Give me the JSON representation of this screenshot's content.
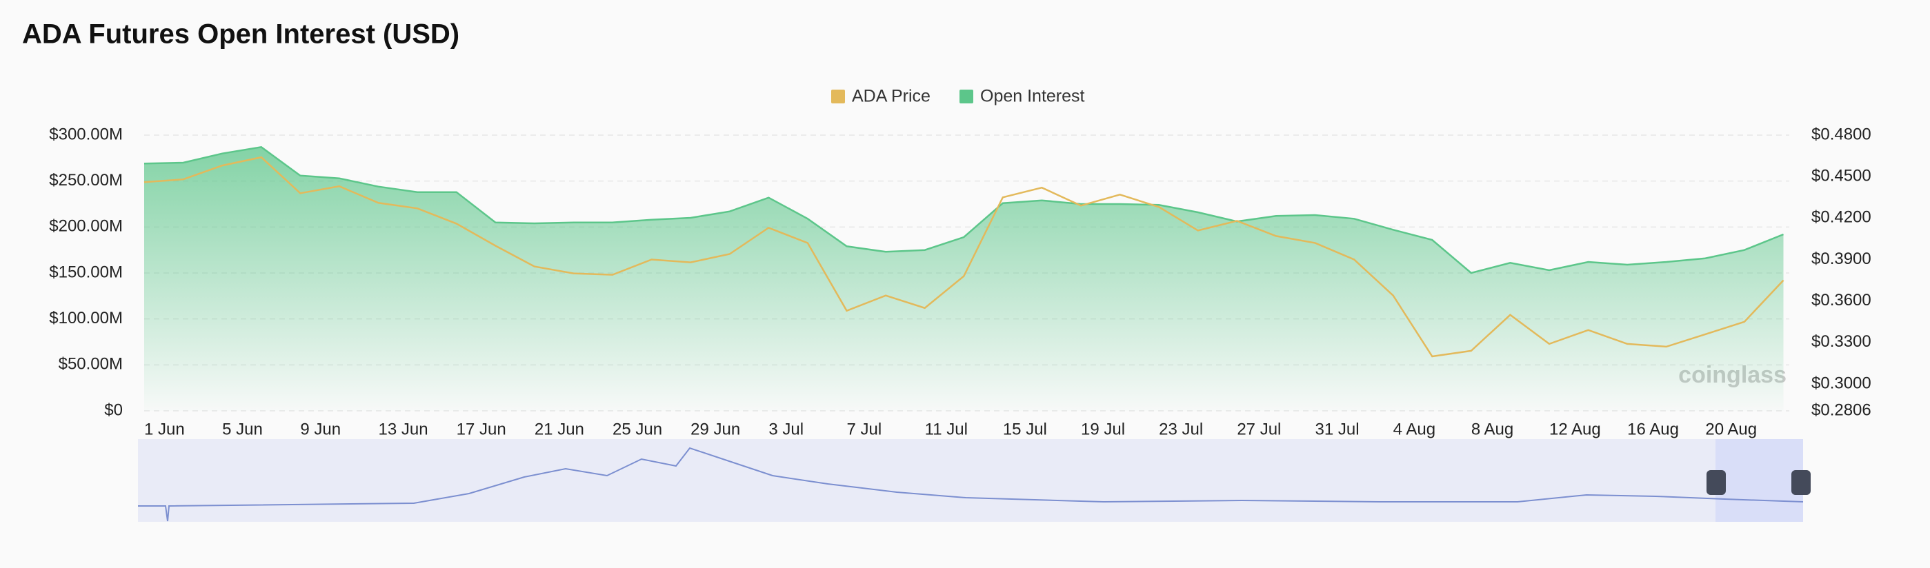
{
  "chart_data": {
    "type": "area-line",
    "title": "ADA Futures Open Interest (USD)",
    "watermark": "coinglass",
    "categories": [
      "1 Jun",
      null,
      "5 Jun",
      null,
      "9 Jun",
      null,
      "13 Jun",
      null,
      "17 Jun",
      null,
      "21 Jun",
      null,
      "25 Jun",
      null,
      "29 Jun",
      null,
      "3 Jul",
      null,
      "7 Jul",
      null,
      "11 Jul",
      null,
      "15 Jul",
      null,
      "19 Jul",
      null,
      "23 Jul",
      null,
      "27 Jul",
      null,
      "31 Jul",
      null,
      "4 Aug",
      null,
      "8 Aug",
      null,
      "12 Aug",
      null,
      "16 Aug",
      null,
      "20 Aug",
      null,
      null
    ],
    "series": [
      {
        "name": "ADA Price",
        "color": "#e3b95b",
        "axis": "y2",
        "values": [
          0.446,
          0.448,
          0.458,
          0.464,
          0.438,
          0.443,
          0.431,
          0.427,
          0.416,
          0.4,
          0.385,
          0.38,
          0.379,
          0.39,
          0.388,
          0.394,
          0.413,
          0.402,
          0.353,
          0.364,
          0.355,
          0.378,
          0.435,
          0.442,
          0.429,
          0.437,
          0.428,
          0.411,
          0.418,
          0.407,
          0.402,
          0.39,
          0.364,
          0.32,
          0.324,
          0.35,
          0.329,
          0.339,
          0.329,
          0.327,
          0.336,
          0.345,
          0.375
        ]
      },
      {
        "name": "Open Interest",
        "color": "#5cc68a",
        "values": [
          269000000,
          270000000,
          280000000,
          287000000,
          256000000,
          253000000,
          244000000,
          238000000,
          238000000,
          205000000,
          204000000,
          205000000,
          205000000,
          208000000,
          210000000,
          217000000,
          232000000,
          209000000,
          179000000,
          173000000,
          175000000,
          189000000,
          226000000,
          229000000,
          225000000,
          225000000,
          224000000,
          216000000,
          206000000,
          212000000,
          213000000,
          209000000,
          197000000,
          186000000,
          150000000,
          161000000,
          153000000,
          162000000,
          159000000,
          162000000,
          166000000,
          175000000,
          192000000
        ]
      }
    ],
    "ylim": [
      0,
      300000000
    ],
    "yticks": [
      {
        "value": 0,
        "label": "$0"
      },
      {
        "value": 50000000,
        "label": "$50.00M"
      },
      {
        "value": 100000000,
        "label": "$100.00M"
      },
      {
        "value": 150000000,
        "label": "$150.00M"
      },
      {
        "value": 200000000,
        "label": "$200.00M"
      },
      {
        "value": 250000000,
        "label": "$250.00M"
      },
      {
        "value": 300000000,
        "label": "$300.00M"
      }
    ],
    "y2lim": [
      0.2806,
      0.48
    ],
    "y2ticks": [
      {
        "value": 0.2806,
        "label": "$0.2806"
      },
      {
        "value": 0.3,
        "label": "$0.3000"
      },
      {
        "value": 0.33,
        "label": "$0.3300"
      },
      {
        "value": 0.36,
        "label": "$0.3600"
      },
      {
        "value": 0.39,
        "label": "$0.3900"
      },
      {
        "value": 0.42,
        "label": "$0.4200"
      },
      {
        "value": 0.45,
        "label": "$0.4500"
      },
      {
        "value": 0.48,
        "label": "$0.4800"
      }
    ],
    "grid": true,
    "legend": "top"
  }
}
